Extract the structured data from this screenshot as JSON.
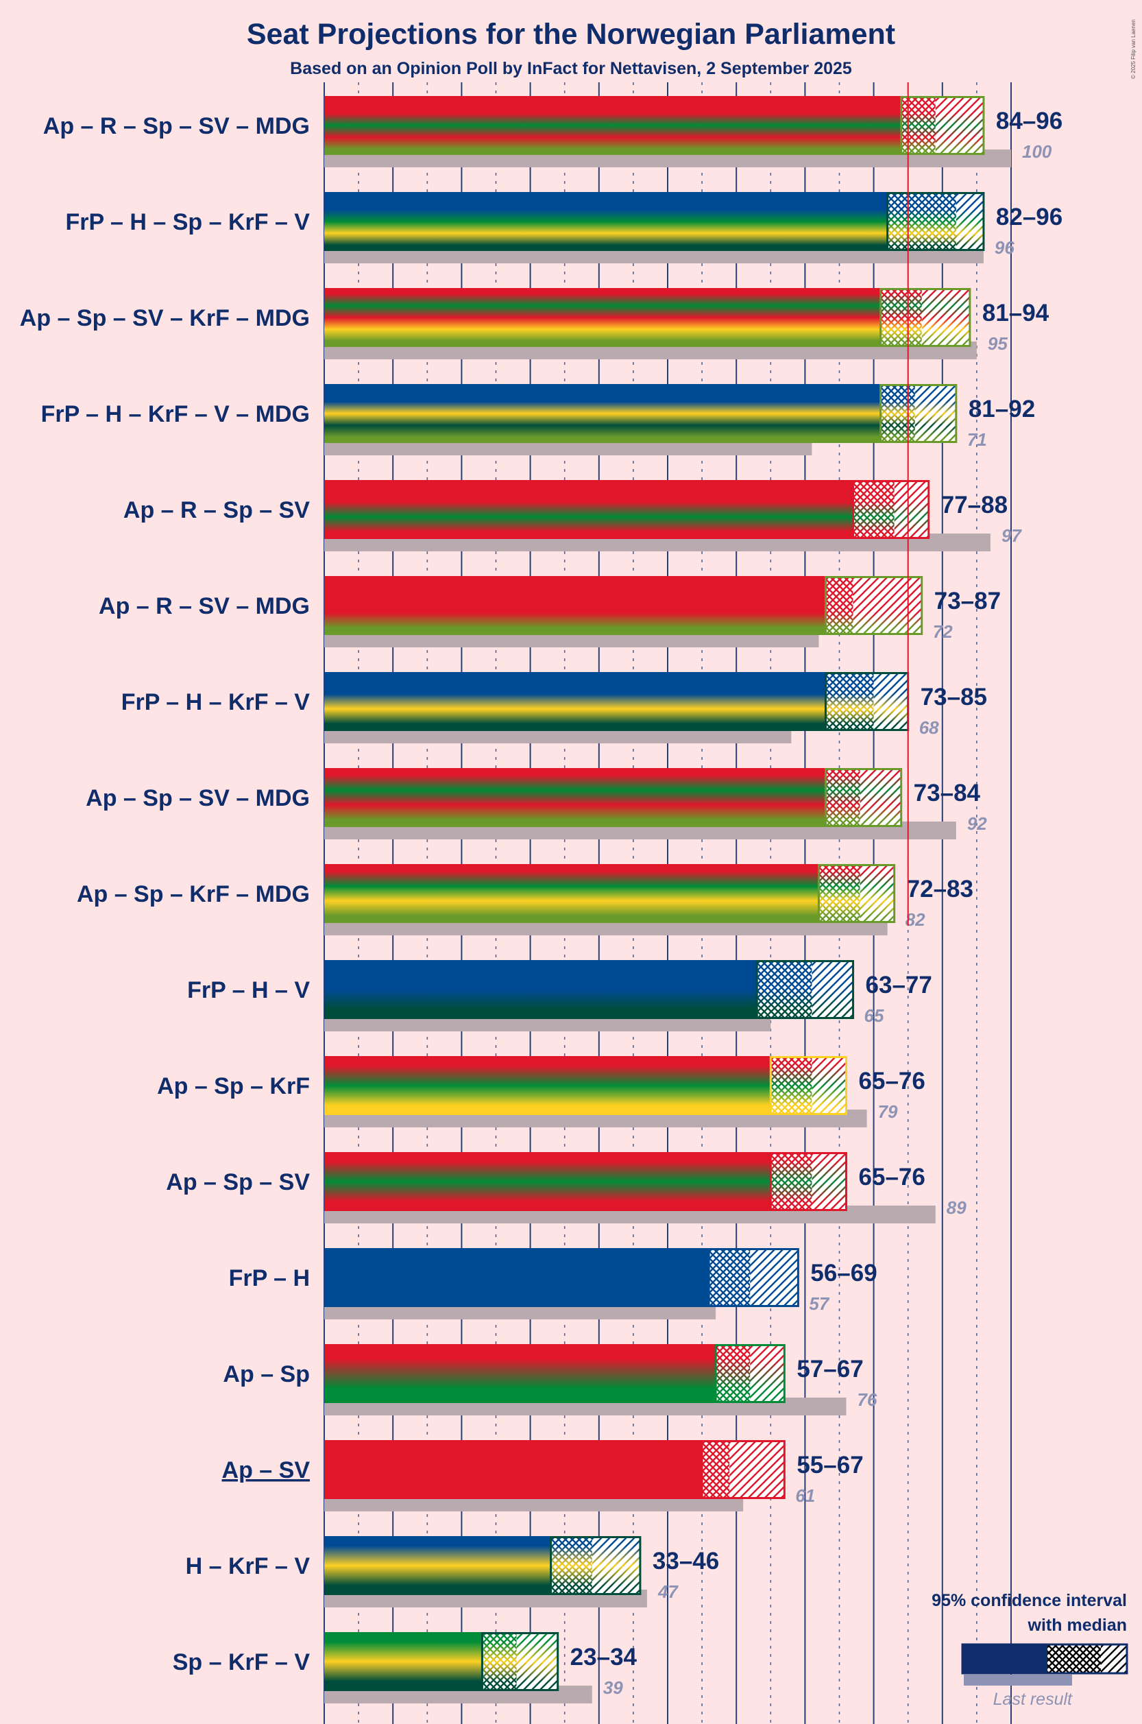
{
  "title": "Seat Projections for the Norwegian Parliament",
  "subtitle": "Based on an Opinion Poll by InFact for Nettavisen, 2 September 2025",
  "copyright": "© 2025 Filip van Laenen",
  "legend": {
    "line1": "95% confidence interval",
    "line2": "with median",
    "last_result": "Last result"
  },
  "party_colors": {
    "Ap": "#e0162b",
    "R": "#e0162b",
    "SV": "#e0162b",
    "Sp": "#008c38",
    "MDG": "#6a9a2a",
    "FrP": "#004a93",
    "H": "#004a93",
    "KrF": "#fdd023",
    "V": "#004d3b"
  },
  "majority": 85,
  "chart_data": {
    "type": "bar",
    "title": "Seat Projections for the Norwegian Parliament",
    "subtitle": "Based on an Opinion Poll by InFact for Nettavisen, 2 September 2025",
    "xlim": [
      0,
      100
    ],
    "majority_line": 85,
    "coalitions": [
      {
        "label": "Ap – R – Sp – SV – MDG",
        "parties": [
          "Ap",
          "R",
          "Sp",
          "SV",
          "MDG"
        ],
        "low": 84,
        "median": 89,
        "high": 96,
        "range": "84–96",
        "last": 100,
        "last_text": "100",
        "underline": false
      },
      {
        "label": "FrP – H – Sp – KrF – V",
        "parties": [
          "FrP",
          "H",
          "Sp",
          "KrF",
          "V"
        ],
        "low": 82,
        "median": 92,
        "high": 96,
        "range": "82–96",
        "last": 96,
        "last_text": "96",
        "underline": false
      },
      {
        "label": "Ap – Sp – SV – KrF – MDG",
        "parties": [
          "Ap",
          "Sp",
          "SV",
          "KrF",
          "MDG"
        ],
        "low": 81,
        "median": 87,
        "high": 94,
        "range": "81–94",
        "last": 95,
        "last_text": "95",
        "underline": false
      },
      {
        "label": "FrP – H – KrF – V – MDG",
        "parties": [
          "FrP",
          "H",
          "KrF",
          "V",
          "MDG"
        ],
        "low": 81,
        "median": 86,
        "high": 92,
        "range": "81–92",
        "last": 71,
        "last_text": "71",
        "underline": false
      },
      {
        "label": "Ap – R – Sp – SV",
        "parties": [
          "Ap",
          "R",
          "Sp",
          "SV"
        ],
        "low": 77,
        "median": 83,
        "high": 88,
        "range": "77–88",
        "last": 97,
        "last_text": "97",
        "underline": false
      },
      {
        "label": "Ap – R – SV – MDG",
        "parties": [
          "Ap",
          "R",
          "SV",
          "MDG"
        ],
        "low": 73,
        "median": 77,
        "high": 87,
        "range": "73–87",
        "last": 72,
        "last_text": "72",
        "underline": false
      },
      {
        "label": "FrP – H – KrF – V",
        "parties": [
          "FrP",
          "H",
          "KrF",
          "V"
        ],
        "low": 73,
        "median": 80,
        "high": 85,
        "range": "73–85",
        "last": 68,
        "last_text": "68",
        "underline": false
      },
      {
        "label": "Ap – Sp – SV – MDG",
        "parties": [
          "Ap",
          "Sp",
          "SV",
          "MDG"
        ],
        "low": 73,
        "median": 78,
        "high": 84,
        "range": "73–84",
        "last": 92,
        "last_text": "92",
        "underline": false
      },
      {
        "label": "Ap – Sp – KrF – MDG",
        "parties": [
          "Ap",
          "Sp",
          "KrF",
          "MDG"
        ],
        "low": 72,
        "median": 78,
        "high": 83,
        "range": "72–83",
        "last": 82,
        "last_text": "82",
        "underline": false
      },
      {
        "label": "FrP – H – V",
        "parties": [
          "FrP",
          "H",
          "V"
        ],
        "low": 63,
        "median": 71,
        "high": 77,
        "range": "63–77",
        "last": 65,
        "last_text": "65",
        "underline": false
      },
      {
        "label": "Ap – Sp – KrF",
        "parties": [
          "Ap",
          "Sp",
          "KrF"
        ],
        "low": 65,
        "median": 71,
        "high": 76,
        "range": "65–76",
        "last": 79,
        "last_text": "79",
        "underline": false
      },
      {
        "label": "Ap – Sp – SV",
        "parties": [
          "Ap",
          "Sp",
          "SV"
        ],
        "low": 65,
        "median": 71,
        "high": 76,
        "range": "65–76",
        "last": 89,
        "last_text": "89",
        "underline": false
      },
      {
        "label": "FrP – H",
        "parties": [
          "FrP",
          "H"
        ],
        "low": 56,
        "median": 62,
        "high": 69,
        "range": "56–69",
        "last": 57,
        "last_text": "57",
        "underline": false
      },
      {
        "label": "Ap – Sp",
        "parties": [
          "Ap",
          "Sp"
        ],
        "low": 57,
        "median": 62,
        "high": 67,
        "range": "57–67",
        "last": 76,
        "last_text": "76",
        "underline": false
      },
      {
        "label": "Ap – SV",
        "parties": [
          "Ap",
          "SV"
        ],
        "low": 55,
        "median": 59,
        "high": 67,
        "range": "55–67",
        "last": 61,
        "last_text": "61",
        "underline": true
      },
      {
        "label": "H – KrF – V",
        "parties": [
          "H",
          "KrF",
          "V"
        ],
        "low": 33,
        "median": 39,
        "high": 46,
        "range": "33–46",
        "last": 47,
        "last_text": "47",
        "underline": false
      },
      {
        "label": "Sp – KrF – V",
        "parties": [
          "Sp",
          "KrF",
          "V"
        ],
        "low": 23,
        "median": 28,
        "high": 34,
        "range": "23–34",
        "last": 39,
        "last_text": "39",
        "underline": false
      }
    ]
  }
}
